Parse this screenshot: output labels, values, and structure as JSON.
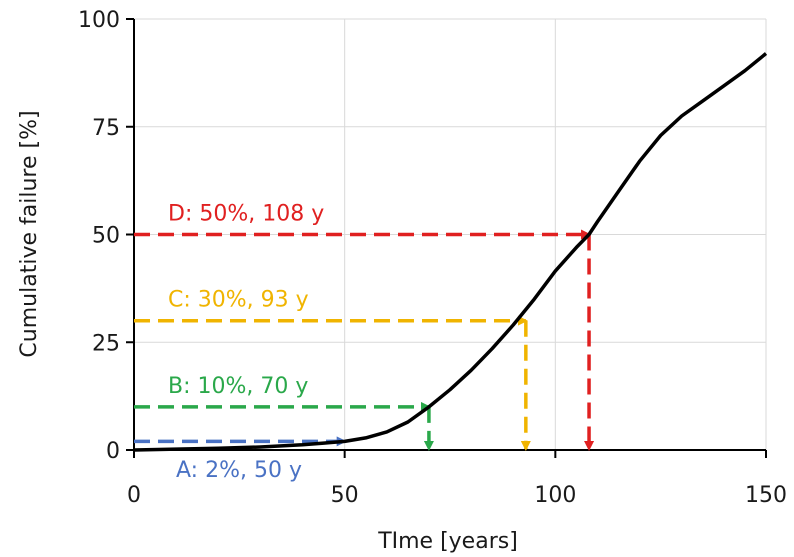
{
  "chart_data": {
    "type": "line",
    "title": "",
    "xlabel": "TIme [years]",
    "ylabel": "Cumulative failure [%]",
    "xlim": [
      0,
      150
    ],
    "ylim": [
      0,
      100
    ],
    "xticks": [
      0,
      50,
      100,
      150
    ],
    "yticks": [
      0,
      25,
      50,
      75,
      100
    ],
    "grid": true,
    "series": [
      {
        "color": "#000000",
        "x": [
          0,
          10,
          20,
          30,
          40,
          45,
          50,
          55,
          60,
          65,
          70,
          75,
          80,
          85,
          90,
          95,
          100,
          105,
          108,
          110,
          115,
          120,
          125,
          130,
          135,
          140,
          145,
          150
        ],
        "y": [
          0,
          0.2,
          0.4,
          0.7,
          1.2,
          1.6,
          2,
          2.8,
          4.2,
          6.5,
          10,
          14,
          18.5,
          23.5,
          29,
          35,
          41.5,
          47,
          50,
          53,
          60,
          67,
          73,
          77.5,
          81,
          84.5,
          88,
          92
        ]
      }
    ],
    "annotations": [
      {
        "id": "A",
        "label": "A: 2%, 50 y",
        "x": 50,
        "y": 2,
        "color": "#4a72c4"
      },
      {
        "id": "B",
        "label": "B: 10%, 70 y",
        "x": 70,
        "y": 10,
        "color": "#2aa84a"
      },
      {
        "id": "C",
        "label": "C: 30%, 93 y",
        "x": 93,
        "y": 30,
        "color": "#f0b400"
      },
      {
        "id": "D",
        "label": "D: 50%, 108 y",
        "x": 108,
        "y": 50,
        "color": "#e02020"
      }
    ]
  }
}
